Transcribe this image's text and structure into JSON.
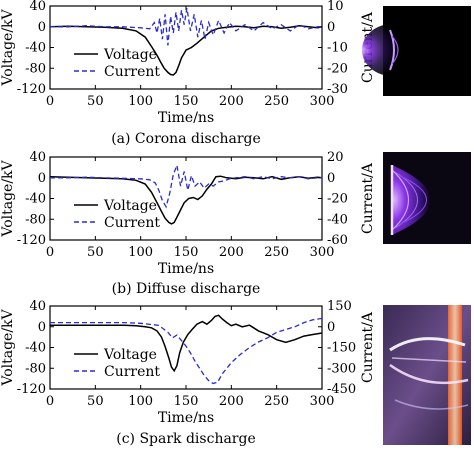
{
  "chart_data": [
    {
      "type": "line",
      "caption": "(a) Corona discharge",
      "xlabel": "Time/ns",
      "ylabel": "Voltage/kV",
      "y2label": "Current/A",
      "xlim": [
        0,
        300
      ],
      "ylim": [
        -120,
        40
      ],
      "y2lim": [
        -30,
        10
      ],
      "xticks": [
        0,
        50,
        100,
        150,
        200,
        250,
        300
      ],
      "yticks": [
        40,
        0,
        -40,
        -80,
        -120
      ],
      "y2ticks": [
        10,
        0,
        -10,
        -20,
        -30
      ],
      "legend_position": "left",
      "series": [
        {
          "name": "Voltage",
          "axis": "left",
          "style": "solid",
          "color": "#000000",
          "x": [
            0,
            20,
            40,
            60,
            80,
            95,
            105,
            112,
            118,
            122,
            126,
            130,
            133,
            136,
            139,
            142,
            145,
            150,
            156,
            162,
            170,
            178,
            186,
            195,
            205,
            215,
            225,
            235,
            245,
            255,
            265,
            275,
            285,
            295,
            300
          ],
          "y": [
            0,
            1,
            0,
            -1,
            -3,
            -8,
            -20,
            -38,
            -55,
            -68,
            -80,
            -88,
            -92,
            -93,
            -88,
            -75,
            -60,
            -45,
            -40,
            -32,
            -20,
            -8,
            -3,
            -1,
            1,
            0,
            -2,
            1,
            0,
            -3,
            -1,
            2,
            0,
            -2,
            0
          ]
        },
        {
          "name": "Current",
          "axis": "right",
          "style": "dashed",
          "color": "#2b2bd0",
          "x": [
            0,
            20,
            40,
            60,
            80,
            100,
            110,
            115,
            118,
            121,
            124,
            127,
            130,
            133,
            136,
            139,
            142,
            145,
            148,
            151,
            155,
            159,
            163,
            167,
            171,
            175,
            180,
            186,
            192,
            198,
            205,
            215,
            225,
            235,
            245,
            255,
            265,
            275,
            285,
            295,
            300
          ],
          "y": [
            0,
            0,
            0.5,
            0,
            0,
            -0.5,
            -1,
            2,
            -3,
            4,
            -6,
            6,
            -9,
            5,
            -3,
            7,
            -2,
            8,
            1,
            9,
            -2,
            6,
            -5,
            3,
            -6,
            2,
            -4,
            3,
            -3,
            2,
            -2,
            1,
            -2,
            2,
            -1,
            1,
            -2,
            1,
            -1,
            0,
            0
          ]
        }
      ]
    },
    {
      "type": "line",
      "caption": "(b) Diffuse discharge",
      "xlabel": "Time/ns",
      "ylabel": "Voltage/kV",
      "y2label": "Current/A",
      "xlim": [
        0,
        300
      ],
      "ylim": [
        -120,
        40
      ],
      "y2lim": [
        -60,
        20
      ],
      "xticks": [
        0,
        50,
        100,
        150,
        200,
        250,
        300
      ],
      "yticks": [
        40,
        0,
        -40,
        -80,
        -120
      ],
      "y2ticks": [
        20,
        0,
        -20,
        -40,
        -60
      ],
      "legend_position": "left",
      "series": [
        {
          "name": "Voltage",
          "axis": "left",
          "style": "solid",
          "color": "#000000",
          "x": [
            0,
            20,
            40,
            60,
            80,
            95,
            105,
            112,
            118,
            123,
            127,
            131,
            134,
            137,
            140,
            144,
            148,
            153,
            158,
            163,
            168,
            173,
            178,
            183,
            188,
            195,
            205,
            215,
            225,
            235,
            245,
            255,
            265,
            275,
            285,
            295,
            300
          ],
          "y": [
            2,
            1,
            0,
            -1,
            -2,
            -5,
            -12,
            -28,
            -48,
            -65,
            -78,
            -86,
            -89,
            -86,
            -76,
            -62,
            -48,
            -40,
            -38,
            -42,
            -35,
            -22,
            -12,
            2,
            3,
            0,
            -2,
            1,
            0,
            -2,
            2,
            -3,
            0,
            2,
            -1,
            1,
            0
          ]
        },
        {
          "name": "Current",
          "axis": "right",
          "style": "dashed",
          "color": "#2b2bd0",
          "x": [
            0,
            20,
            40,
            60,
            80,
            100,
            110,
            116,
            120,
            124,
            128,
            132,
            136,
            140,
            144,
            148,
            152,
            156,
            160,
            165,
            170,
            175,
            180,
            186,
            192,
            198,
            205,
            215,
            225,
            235,
            245,
            255,
            265,
            275,
            285,
            295,
            300
          ],
          "y": [
            0,
            0,
            0.5,
            0,
            -0.5,
            -1,
            -2,
            -5,
            -12,
            -22,
            -28,
            -15,
            3,
            12,
            -8,
            6,
            -12,
            2,
            -8,
            -4,
            -10,
            -6,
            -8,
            -4,
            -3,
            -1,
            0,
            1,
            -1,
            1,
            -1,
            1,
            0,
            1,
            -1,
            0,
            0
          ]
        }
      ]
    },
    {
      "type": "line",
      "caption": "(c) Spark discharge",
      "xlabel": "Time/ns",
      "ylabel": "Voltage/kV",
      "y2label": "Current/A",
      "xlim": [
        0,
        300
      ],
      "ylim": [
        -120,
        40
      ],
      "y2lim": [
        -450,
        150
      ],
      "xticks": [
        0,
        50,
        100,
        150,
        200,
        250,
        300
      ],
      "yticks": [
        40,
        0,
        -40,
        -80,
        -120
      ],
      "y2ticks": [
        150,
        0,
        -150,
        -300,
        -450
      ],
      "legend_position": "left",
      "series": [
        {
          "name": "Voltage",
          "axis": "left",
          "style": "solid",
          "color": "#000000",
          "x": [
            0,
            20,
            40,
            60,
            80,
            95,
            105,
            112,
            118,
            123,
            127,
            131,
            134,
            137,
            140,
            143,
            147,
            152,
            157,
            162,
            168,
            173,
            178,
            182,
            186,
            190,
            195,
            200,
            205,
            212,
            220,
            230,
            240,
            250,
            260,
            270,
            280,
            290,
            300
          ],
          "y": [
            3,
            3,
            3,
            3,
            3,
            2,
            0,
            -2,
            -8,
            -20,
            -38,
            -60,
            -78,
            -85,
            -75,
            -50,
            -30,
            -15,
            -5,
            5,
            10,
            5,
            12,
            20,
            22,
            15,
            8,
            2,
            5,
            0,
            3,
            -8,
            -15,
            -25,
            -30,
            -25,
            -18,
            -15,
            -12
          ]
        },
        {
          "name": "Current",
          "axis": "right",
          "style": "dashed",
          "color": "#2b2bd0",
          "x": [
            0,
            20,
            40,
            60,
            80,
            100,
            120,
            130,
            135,
            140,
            145,
            150,
            155,
            160,
            165,
            170,
            175,
            180,
            185,
            190,
            200,
            210,
            220,
            230,
            240,
            250,
            260,
            270,
            280,
            290,
            300
          ],
          "y": [
            30,
            30,
            30,
            30,
            30,
            25,
            10,
            -40,
            -80,
            -60,
            -100,
            -140,
            -190,
            -250,
            -300,
            -350,
            -390,
            -410,
            -400,
            -340,
            -260,
            -200,
            -150,
            -110,
            -80,
            -40,
            -20,
            0,
            30,
            50,
            60
          ]
        }
      ]
    }
  ]
}
